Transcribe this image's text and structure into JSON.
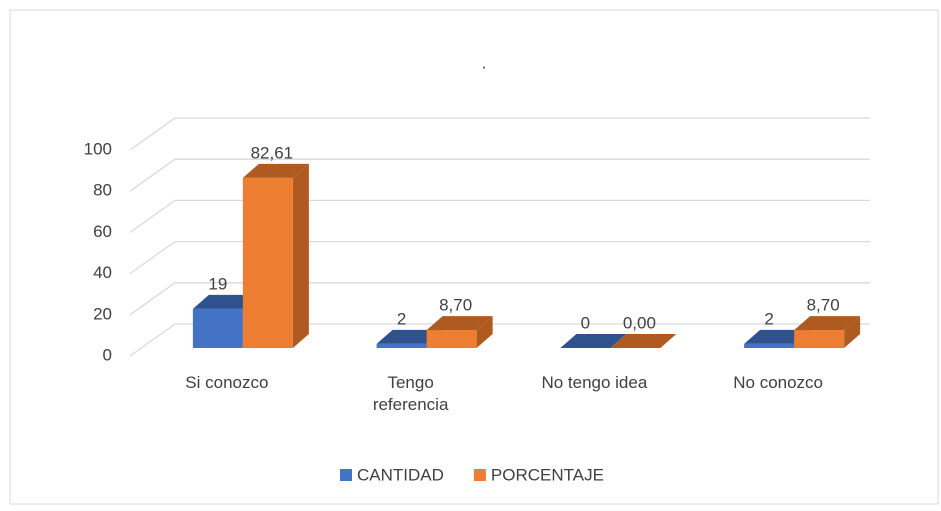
{
  "chart_data": {
    "type": "bar3d",
    "title": ".",
    "categories": [
      "Si conozco",
      "Tengo referencia",
      "No tengo idea",
      "No conozco"
    ],
    "series": [
      {
        "name": "CANTIDAD",
        "color": "#4472c4",
        "side_color": "#2f528f",
        "values": [
          19,
          2,
          0,
          2
        ]
      },
      {
        "name": "PORCENTAJE",
        "color": "#ed7d31",
        "side_color": "#ae5a21",
        "values": [
          82.61,
          8.7,
          0,
          8.7
        ],
        "value_labels": [
          "82,61",
          "8,70",
          "0,00",
          "8,70"
        ]
      }
    ],
    "ylim": [
      0,
      100
    ],
    "yticks": [
      0,
      20,
      40,
      60,
      80,
      100
    ],
    "grid": true,
    "legend": "bottom"
  }
}
